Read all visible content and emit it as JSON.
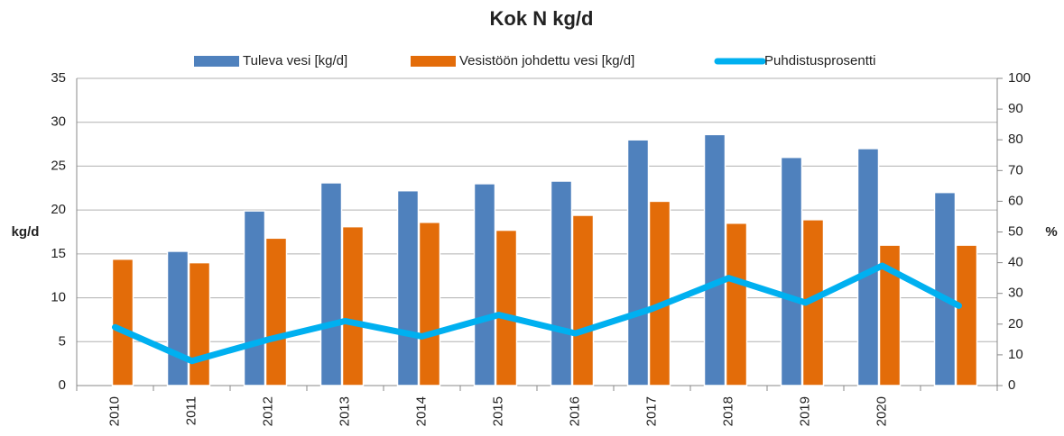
{
  "chart_data": {
    "type": "bar",
    "title": "Kok N kg/d",
    "categories": [
      "2010",
      "2011",
      "2012",
      "2013",
      "2014",
      "2015",
      "2016",
      "2017",
      "2018",
      "2019",
      "2020",
      null
    ],
    "series": [
      {
        "name": "Tuleva vesi [kg/d]",
        "color": "#4f81bd",
        "type": "bar",
        "values": [
          null,
          15.3,
          19.9,
          23.1,
          22.2,
          23.0,
          23.3,
          28.0,
          28.6,
          26.0,
          27.0,
          22.0
        ]
      },
      {
        "name": "Vesistöön johdettu vesi [kg/d]",
        "color": "#e36c09",
        "type": "bar",
        "values": [
          14.4,
          14.0,
          16.8,
          18.1,
          18.6,
          17.7,
          19.4,
          21.0,
          18.5,
          18.9,
          16.0,
          16.0
        ]
      },
      {
        "name": "Puhdistusprosentti",
        "color": "#00b0f0",
        "type": "line",
        "axis": "y2",
        "values": [
          19,
          8,
          15,
          21,
          16,
          23,
          17,
          25,
          35,
          27,
          39,
          26
        ]
      }
    ],
    "ylabel": "kg/d",
    "y2label": "%",
    "ylim": [
      0,
      35
    ],
    "yticks": [
      0,
      5,
      10,
      15,
      20,
      25,
      30,
      35
    ],
    "y2lim": [
      0,
      100
    ],
    "y2ticks": [
      0,
      10,
      20,
      30,
      40,
      50,
      60,
      70,
      80,
      90,
      100
    ],
    "grid": true,
    "legend": "top"
  }
}
